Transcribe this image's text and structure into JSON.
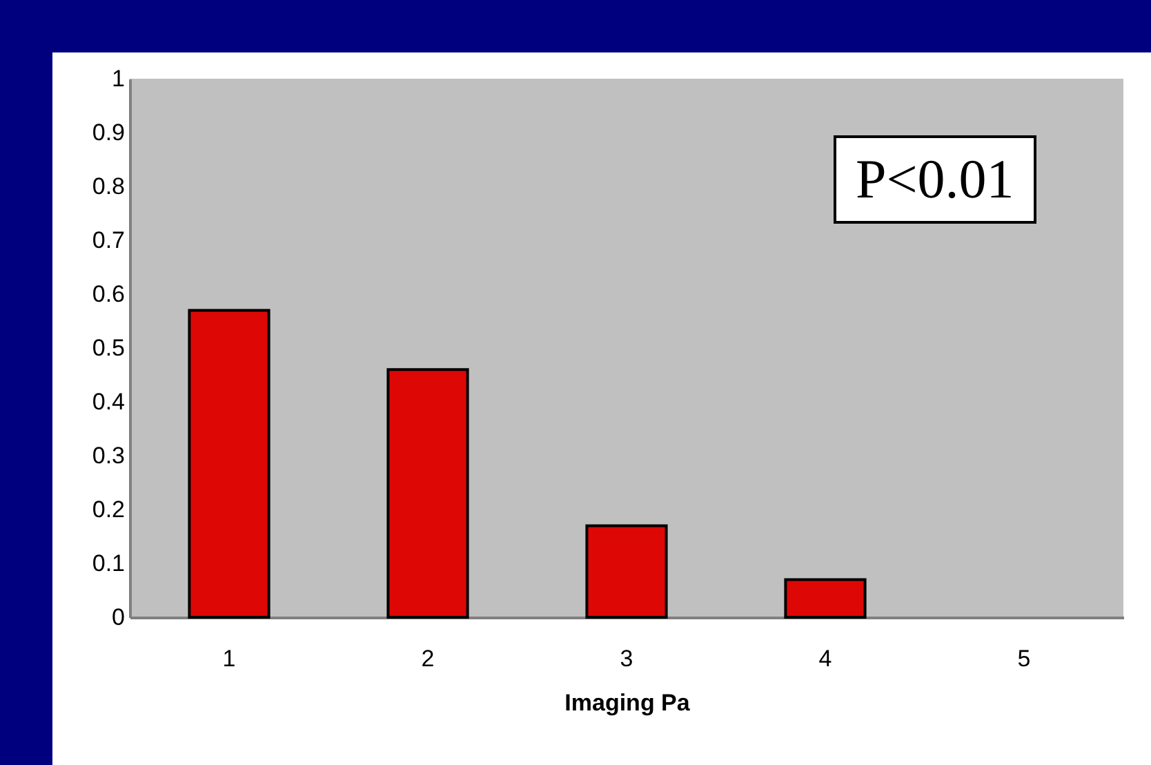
{
  "chart_data": {
    "type": "bar",
    "xlabel": "Imaging Pa",
    "categories": [
      "1",
      "2",
      "3",
      "4",
      "5"
    ],
    "values": [
      0.57,
      0.46,
      0.17,
      0.07,
      0
    ],
    "color": "#dd0806",
    "ylim": [
      0,
      1
    ],
    "yticks": [
      0,
      0.1,
      0.2,
      0.3,
      0.4,
      0.5,
      0.6,
      0.7,
      0.8,
      0.9,
      1
    ],
    "grid": false,
    "annotations": [
      "P<0.01"
    ]
  }
}
